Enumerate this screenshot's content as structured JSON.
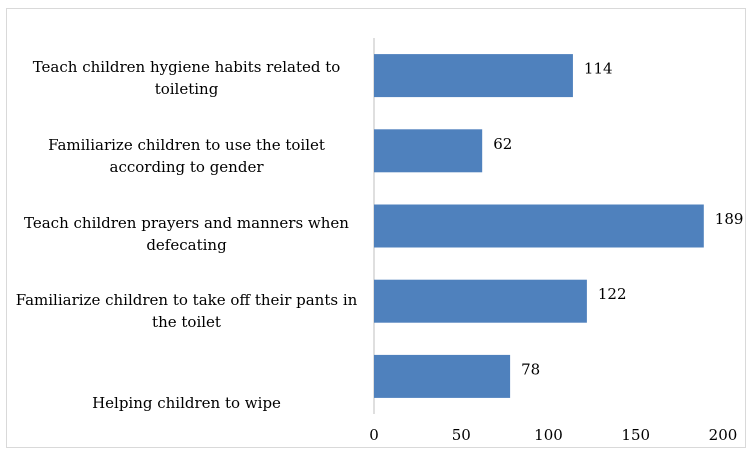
{
  "chart_data": {
    "type": "bar",
    "orientation": "horizontal",
    "categories": [
      "Teach children hygiene habits related to toileting",
      "Familiarize children to use the toilet according to gender",
      "Teach children prayers and manners when defecating",
      "Familiarize children to take off their pants in the toilet",
      "Helping children to wipe"
    ],
    "values": [
      114,
      62,
      189,
      122,
      78
    ],
    "data_labels": [
      "114",
      "62",
      "189",
      "122",
      "78"
    ],
    "xlim": [
      0,
      200
    ],
    "x_ticks": [
      "0",
      "50",
      "100",
      "150",
      "200"
    ],
    "gridlines": false,
    "legend": "none",
    "bar_color": "#4f81bd"
  }
}
